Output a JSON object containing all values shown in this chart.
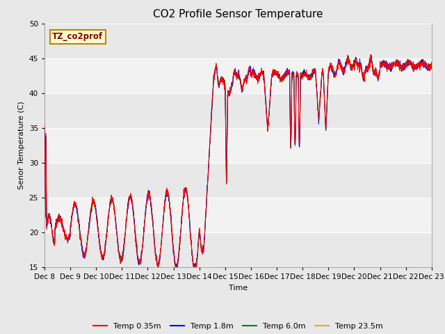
{
  "title": "CO2 Profile Sensor Temperature",
  "ylabel": "Senor Temperature (C)",
  "xlabel": "Time",
  "ylim": [
    15,
    50
  ],
  "yticks": [
    15,
    20,
    25,
    30,
    35,
    40,
    45,
    50
  ],
  "legend_label": "TZ_co2prof",
  "series_labels": [
    "Temp 0.35m",
    "Temp 1.8m",
    "Temp 6.0m",
    "Temp 23.5m"
  ],
  "series_colors": [
    "red",
    "blue",
    "green",
    "orange"
  ],
  "xticklabels": [
    "Dec 8",
    "Dec 9",
    "Dec 10",
    "Dec 11",
    "Dec 12",
    "Dec 13",
    "Dec 14",
    "Dec 15",
    "Dec 16",
    "Dec 17",
    "Dec 18",
    "Dec 19",
    "Dec 20",
    "Dec 21",
    "Dec 22",
    "Dec 23"
  ],
  "title_fontsize": 11,
  "axis_fontsize": 8,
  "tick_fontsize": 7.5,
  "legend_fontsize": 8,
  "fig_facecolor": "#e8e8e8",
  "plot_facecolor": "#f2f2f2",
  "band_color_light": "#e8e8e8",
  "band_color_dark": "#f2f2f2",
  "grid_color": "#ffffff"
}
